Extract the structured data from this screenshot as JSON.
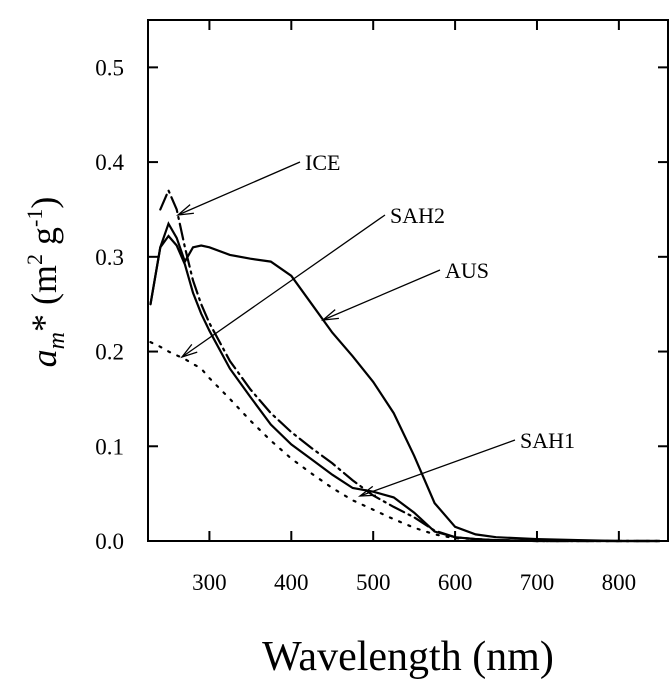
{
  "chart_data": {
    "type": "line",
    "x_label": "Wavelength (nm)",
    "y_label_parts": [
      "a",
      "m",
      "* (m",
      "2",
      " g",
      "-1",
      ")"
    ],
    "x": [
      228,
      240,
      250,
      260,
      270,
      280,
      290,
      300,
      325,
      350,
      375,
      400,
      425,
      450,
      475,
      500,
      525,
      550,
      575,
      600,
      625,
      650,
      700,
      750,
      800,
      850
    ],
    "series": [
      {
        "name": "ICE",
        "color": "#000000",
        "line_style": "dashdot",
        "values": [
          null,
          0.35,
          0.37,
          0.35,
          0.31,
          0.275,
          0.25,
          0.23,
          0.19,
          0.16,
          0.135,
          0.115,
          0.098,
          0.082,
          0.064,
          0.048,
          0.036,
          0.025,
          0.011,
          0.004,
          0.002,
          0.001,
          0,
          0,
          0,
          0
        ]
      },
      {
        "name": "SAH2",
        "color": "#000000",
        "line_style": "dotted",
        "values": [
          0.21,
          0.205,
          0.2,
          0.196,
          0.192,
          0.187,
          0.182,
          0.172,
          0.15,
          0.127,
          0.106,
          0.087,
          0.071,
          0.056,
          0.043,
          0.033,
          0.023,
          0.014,
          0.007,
          0.003,
          0.002,
          0.001,
          0,
          0,
          0,
          0
        ]
      },
      {
        "name": "AUS",
        "color": "#000000",
        "line_style": "solid",
        "values": [
          0.25,
          0.31,
          0.335,
          0.32,
          0.295,
          0.31,
          0.312,
          0.31,
          0.302,
          0.298,
          0.295,
          0.28,
          0.25,
          0.22,
          0.195,
          0.168,
          0.135,
          0.09,
          0.04,
          0.015,
          0.007,
          0.004,
          0.002,
          0.001,
          0,
          0
        ]
      },
      {
        "name": "SAH1",
        "color": "#000000",
        "line_style": "solid",
        "values": [
          0.25,
          0.31,
          0.322,
          0.312,
          0.292,
          0.262,
          0.24,
          0.222,
          0.182,
          0.152,
          0.123,
          0.102,
          0.086,
          0.07,
          0.056,
          0.052,
          0.046,
          0.03,
          0.01,
          0.004,
          0.002,
          0.001,
          0,
          0,
          0,
          0
        ]
      }
    ],
    "xlim": [
      225,
      860
    ],
    "ylim": [
      0,
      0.55
    ],
    "xticks": [
      300,
      400,
      500,
      600,
      700,
      800
    ],
    "yticks": [
      {
        "value": 0,
        "label": "0.0"
      },
      0.1,
      0.2,
      0.3,
      0.4,
      0.5
    ]
  }
}
